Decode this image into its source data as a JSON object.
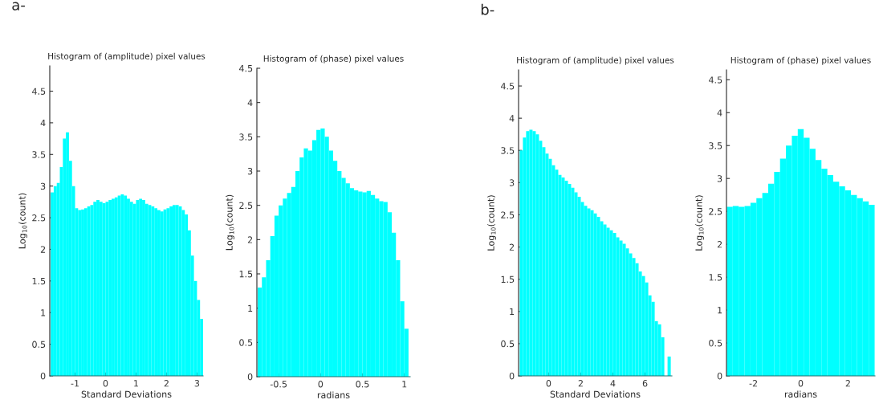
{
  "chart_data": [
    {
      "type": "histogram",
      "title": "Histogram of (amplitude) pixel values",
      "xlabel": "Standard Deviations",
      "ylabel": "Log$_{10}$(count)",
      "annotations": [
        "a-"
      ],
      "color": "#00ffff",
      "grid": false,
      "bins": [
        -1.8,
        -1.7,
        -1.6,
        -1.5,
        -1.4,
        -1.3,
        -1.2,
        -1.1,
        -1.0,
        -0.9,
        -0.8,
        -0.7,
        -0.6,
        -0.5,
        -0.4,
        -0.3,
        -0.2,
        -0.1,
        0.0,
        0.1,
        0.2,
        0.3,
        0.4,
        0.5,
        0.6,
        0.7,
        0.8,
        0.9,
        1.0,
        1.1,
        1.2,
        1.3,
        1.4,
        1.5,
        1.6,
        1.7,
        1.8,
        1.9,
        2.0,
        2.1,
        2.2,
        2.3,
        2.4,
        2.5,
        2.6,
        2.7,
        2.8,
        2.9,
        3.0,
        3.1,
        3.2
      ],
      "values": [
        2.9,
        3.0,
        3.05,
        3.3,
        3.75,
        3.85,
        3.4,
        3.0,
        2.65,
        2.62,
        2.63,
        2.65,
        2.68,
        2.7,
        2.75,
        2.78,
        2.75,
        2.73,
        2.75,
        2.78,
        2.8,
        2.82,
        2.85,
        2.87,
        2.85,
        2.8,
        2.75,
        2.72,
        2.78,
        2.8,
        2.78,
        2.72,
        2.7,
        2.68,
        2.65,
        2.62,
        2.6,
        2.63,
        2.65,
        2.68,
        2.7,
        2.7,
        2.68,
        2.62,
        2.55,
        2.3,
        1.9,
        1.5,
        1.2,
        0.9
      ],
      "xlim": [
        -1.83,
        3.2
      ],
      "xticks": [
        -1,
        0,
        1,
        2,
        3
      ],
      "ylim": [
        0,
        4.9
      ],
      "yticks": [
        0,
        0.5,
        1,
        1.5,
        2,
        2.5,
        3,
        3.5,
        4,
        4.5
      ]
    },
    {
      "type": "histogram",
      "title": "Histogram of (phase) pixel values",
      "xlabel": "radians",
      "ylabel": "Log$_{10}$(count)",
      "color": "#00ffff",
      "grid": false,
      "bins": [
        -0.75,
        -0.7,
        -0.65,
        -0.6,
        -0.55,
        -0.5,
        -0.45,
        -0.4,
        -0.35,
        -0.3,
        -0.25,
        -0.2,
        -0.15,
        -0.1,
        -0.05,
        0.0,
        0.05,
        0.1,
        0.15,
        0.2,
        0.25,
        0.3,
        0.35,
        0.4,
        0.45,
        0.5,
        0.55,
        0.6,
        0.65,
        0.7,
        0.75,
        0.8,
        0.85,
        0.9,
        0.95,
        1.0,
        1.05
      ],
      "values": [
        1.3,
        1.45,
        1.7,
        2.05,
        2.35,
        2.5,
        2.6,
        2.68,
        2.77,
        3.0,
        3.2,
        3.33,
        3.3,
        3.45,
        3.6,
        3.62,
        3.5,
        3.3,
        3.15,
        3.0,
        2.9,
        2.82,
        2.75,
        2.72,
        2.7,
        2.69,
        2.71,
        2.65,
        2.6,
        2.56,
        2.55,
        2.4,
        2.1,
        1.7,
        1.1,
        0.7
      ],
      "xlim": [
        -0.76,
        1.07
      ],
      "xticks": [
        -0.5,
        0,
        0.5,
        1
      ],
      "ylim": [
        0,
        4.5
      ],
      "yticks": [
        0,
        0.5,
        1,
        1.5,
        2,
        2.5,
        3,
        3.5,
        4,
        4.5
      ]
    },
    {
      "type": "histogram",
      "title": "Histogram of (amplitude) pixel values",
      "xlabel": "Standard Deviations",
      "ylabel": "Log$_{10}$(count)",
      "annotations": [
        "b-"
      ],
      "color": "#00ffff",
      "grid": false,
      "bins": [
        -1.8,
        -1.6,
        -1.4,
        -1.2,
        -1.0,
        -0.8,
        -0.6,
        -0.4,
        -0.2,
        0.0,
        0.2,
        0.4,
        0.6,
        0.8,
        1.0,
        1.2,
        1.4,
        1.6,
        1.8,
        2.0,
        2.2,
        2.4,
        2.6,
        2.8,
        3.0,
        3.2,
        3.4,
        3.6,
        3.8,
        4.0,
        4.2,
        4.4,
        4.6,
        4.8,
        5.0,
        5.2,
        5.4,
        5.6,
        5.8,
        6.0,
        6.2,
        6.4,
        6.6,
        6.8,
        7.0,
        7.2,
        7.4,
        7.6
      ],
      "values": [
        3.5,
        3.7,
        3.8,
        3.82,
        3.8,
        3.75,
        3.65,
        3.55,
        3.45,
        3.37,
        3.27,
        3.2,
        3.12,
        3.08,
        3.03,
        2.98,
        2.92,
        2.85,
        2.78,
        2.7,
        2.64,
        2.6,
        2.57,
        2.52,
        2.47,
        2.4,
        2.35,
        2.3,
        2.26,
        2.22,
        2.15,
        2.1,
        2.05,
        1.98,
        1.9,
        1.83,
        1.75,
        1.62,
        1.55,
        1.45,
        1.25,
        1.15,
        0.85,
        0.8,
        0.6,
        0,
        0.3
      ],
      "xlim": [
        -1.87,
        7.67
      ],
      "xticks": [
        0,
        2,
        4,
        6
      ],
      "ylim": [
        0,
        4.75
      ],
      "yticks": [
        0,
        0.5,
        1,
        1.5,
        2,
        2.5,
        3,
        3.5,
        4,
        4.5
      ]
    },
    {
      "type": "histogram",
      "title": "Histogram of (phase) pixel values",
      "xlabel": "radians",
      "ylabel": "Log$_{10}$(count)",
      "color": "#00ffff",
      "grid": false,
      "bins": [
        -3.125,
        -2.875,
        -2.625,
        -2.375,
        -2.125,
        -1.875,
        -1.625,
        -1.375,
        -1.125,
        -0.875,
        -0.625,
        -0.375,
        -0.125,
        0.125,
        0.375,
        0.625,
        0.875,
        1.125,
        1.375,
        1.625,
        1.875,
        2.125,
        2.375,
        2.625,
        2.875,
        3.125
      ],
      "values": [
        2.57,
        2.58,
        2.57,
        2.58,
        2.63,
        2.7,
        2.78,
        2.92,
        3.1,
        3.3,
        3.5,
        3.65,
        3.75,
        3.62,
        3.45,
        3.28,
        3.15,
        3.05,
        2.95,
        2.88,
        2.82,
        2.75,
        2.7,
        2.65,
        2.6
      ],
      "xlim": [
        -3.14,
        3.14
      ],
      "xticks": [
        -2,
        0,
        2
      ],
      "ylim": [
        0,
        4.65
      ],
      "yticks": [
        0,
        0.5,
        1,
        1.5,
        2,
        2.5,
        3,
        3.5,
        4,
        4.5
      ]
    }
  ]
}
